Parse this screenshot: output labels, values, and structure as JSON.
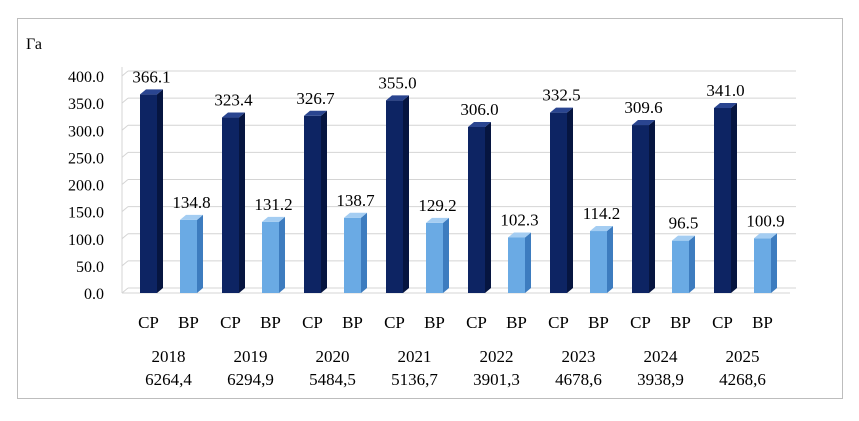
{
  "chart_data": {
    "type": "bar",
    "ylabel": "Га",
    "ylim": [
      0,
      400
    ],
    "ytick_step": 50,
    "ytick_labels": [
      "0.0",
      "50.0",
      "100.0",
      "150.0",
      "200.0",
      "250.0",
      "300.0",
      "350.0",
      "400.0"
    ],
    "grid": true,
    "legend": "none",
    "series_labels": [
      "СР",
      "ВР"
    ],
    "groups": [
      {
        "year": "2018",
        "total": "6264,4",
        "values": [
          366.1,
          134.8
        ],
        "value_labels": [
          "366.1",
          "134.8"
        ]
      },
      {
        "year": "2019",
        "total": "6294,9",
        "values": [
          323.4,
          131.2
        ],
        "value_labels": [
          "323.4",
          "131.2"
        ]
      },
      {
        "year": "2020",
        "total": "5484,5",
        "values": [
          326.7,
          138.7
        ],
        "value_labels": [
          "326.7",
          "138.7"
        ]
      },
      {
        "year": "2021",
        "total": "5136,7",
        "values": [
          355.0,
          129.2
        ],
        "value_labels": [
          "355.0",
          "129.2"
        ]
      },
      {
        "year": "2022",
        "total": "3901,3",
        "values": [
          306.0,
          102.3
        ],
        "value_labels": [
          "306.0",
          "102.3"
        ]
      },
      {
        "year": "2023",
        "total": "4678,6",
        "values": [
          332.5,
          114.2
        ],
        "value_labels": [
          "332.5",
          "114.2"
        ]
      },
      {
        "year": "2024",
        "total": "3938,9",
        "values": [
          309.6,
          96.5
        ],
        "value_labels": [
          "309.6",
          "96.5"
        ]
      },
      {
        "year": "2025",
        "total": "4268,6",
        "values": [
          341.0,
          100.9
        ],
        "value_labels": [
          "341.0",
          "100.9"
        ]
      }
    ],
    "colors": {
      "sr_front": "#0d2463",
      "sr_side": "#061540",
      "sr_top": "#2a4590",
      "vr_front": "#6aaae4",
      "vr_side": "#3d7cbf",
      "vr_top": "#a4cdf2",
      "grid": "#d4d4d4"
    }
  }
}
